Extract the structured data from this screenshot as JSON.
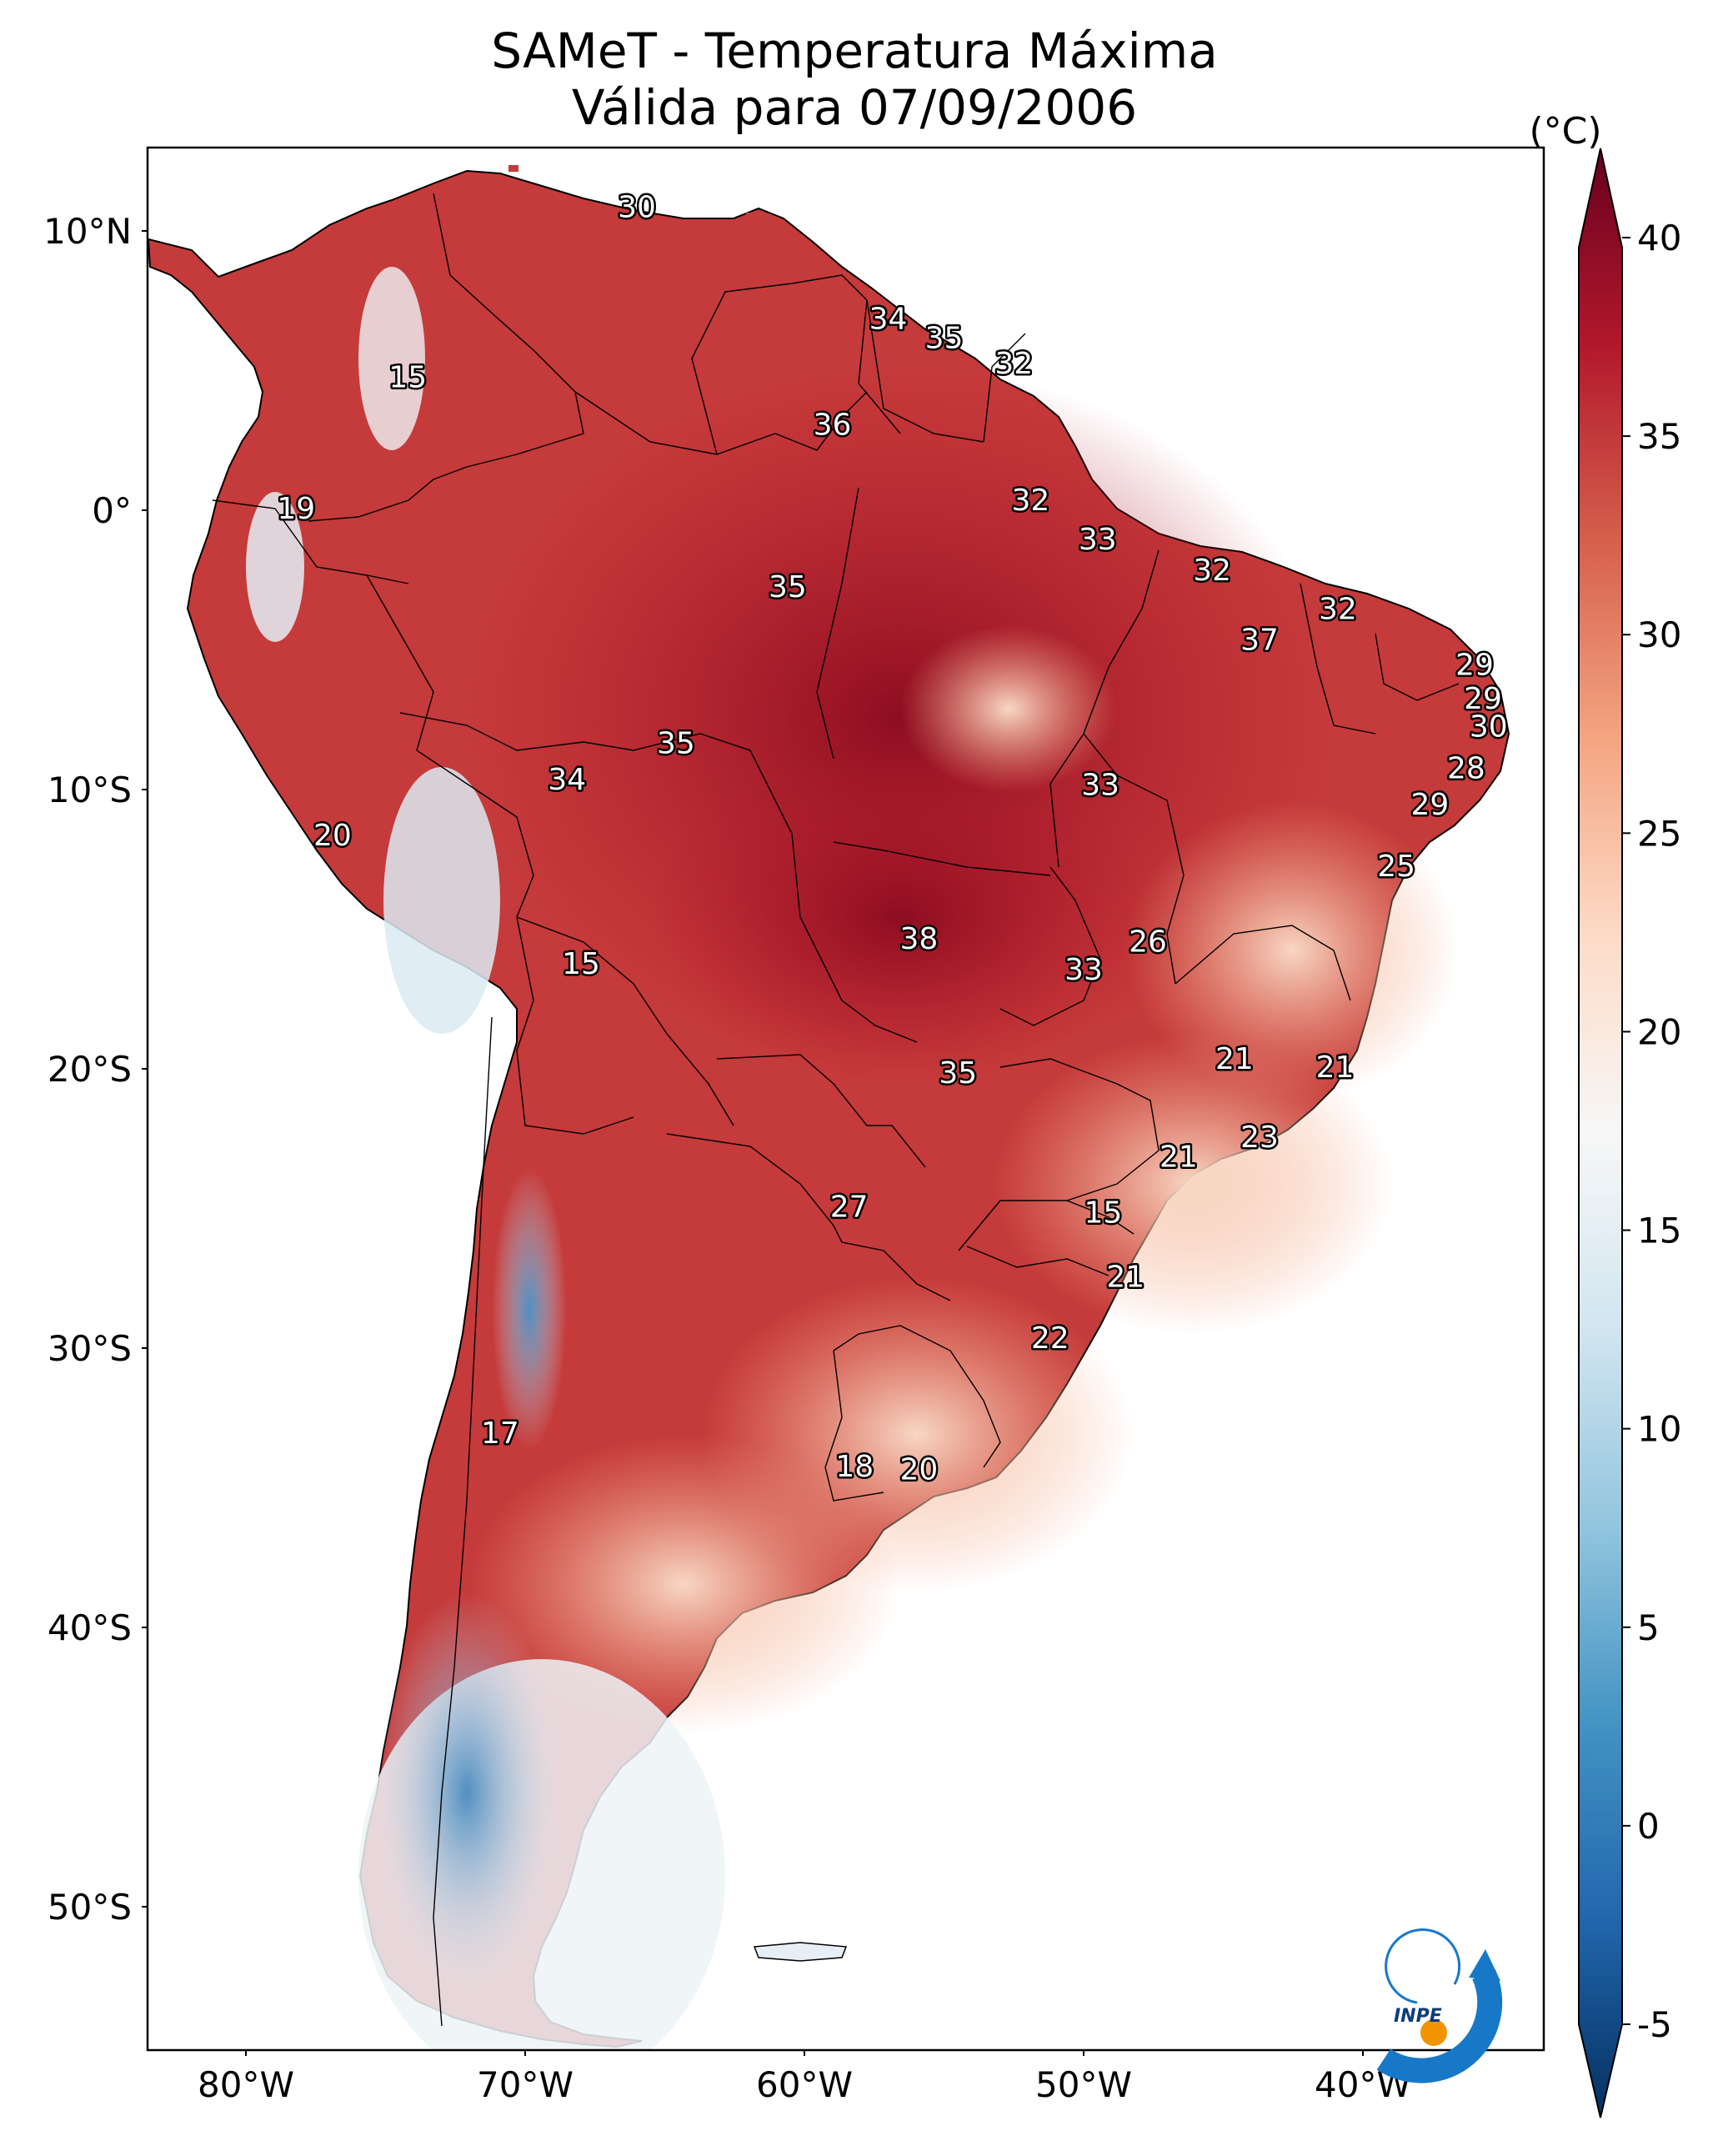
{
  "title": {
    "line1": "SAMeT - Temperatura Máxima",
    "line2": "Válida para 07/09/2006"
  },
  "map": {
    "lat_labels": [
      "10°N",
      "0°",
      "10°S",
      "20°S",
      "30°S",
      "40°S",
      "50°S"
    ],
    "lon_labels": [
      "80°W",
      "70°W",
      "60°W",
      "50°W",
      "40°W"
    ],
    "point_labels": [
      {
        "value": "30",
        "lon": -66.0,
        "lat": 10.5
      },
      {
        "value": "34",
        "lon": -57.0,
        "lat": 6.5
      },
      {
        "value": "35",
        "lon": -55.0,
        "lat": 5.8
      },
      {
        "value": "32",
        "lon": -52.5,
        "lat": 4.9
      },
      {
        "value": "15",
        "lon": -74.2,
        "lat": 4.4
      },
      {
        "value": "36",
        "lon": -59.0,
        "lat": 2.7
      },
      {
        "value": "32",
        "lon": -51.9,
        "lat": 0.0
      },
      {
        "value": "19",
        "lon": -78.2,
        "lat": -0.3
      },
      {
        "value": "33",
        "lon": -49.5,
        "lat": -1.4
      },
      {
        "value": "32",
        "lon": -45.4,
        "lat": -2.5
      },
      {
        "value": "35",
        "lon": -60.6,
        "lat": -3.1
      },
      {
        "value": "32",
        "lon": -40.9,
        "lat": -3.9
      },
      {
        "value": "37",
        "lon": -43.7,
        "lat": -5.0
      },
      {
        "value": "29",
        "lon": -36.0,
        "lat": -5.9
      },
      {
        "value": "29",
        "lon": -35.7,
        "lat": -7.1
      },
      {
        "value": "30",
        "lon": -35.5,
        "lat": -8.1
      },
      {
        "value": "35",
        "lon": -64.6,
        "lat": -8.7
      },
      {
        "value": "28",
        "lon": -36.3,
        "lat": -9.6
      },
      {
        "value": "34",
        "lon": -68.5,
        "lat": -10.0
      },
      {
        "value": "33",
        "lon": -49.4,
        "lat": -10.2
      },
      {
        "value": "29",
        "lon": -37.6,
        "lat": -10.9
      },
      {
        "value": "20",
        "lon": -76.9,
        "lat": -12.0
      },
      {
        "value": "25",
        "lon": -38.8,
        "lat": -13.1
      },
      {
        "value": "38",
        "lon": -55.9,
        "lat": -15.7
      },
      {
        "value": "26",
        "lon": -47.7,
        "lat": -15.8
      },
      {
        "value": "15",
        "lon": -68.0,
        "lat": -16.6
      },
      {
        "value": "33",
        "lon": -50.0,
        "lat": -16.8
      },
      {
        "value": "21",
        "lon": -44.6,
        "lat": -20.0
      },
      {
        "value": "21",
        "lon": -41.0,
        "lat": -20.3
      },
      {
        "value": "35",
        "lon": -54.5,
        "lat": -20.5
      },
      {
        "value": "23",
        "lon": -43.7,
        "lat": -22.8
      },
      {
        "value": "21",
        "lon": -46.6,
        "lat": -23.5
      },
      {
        "value": "27",
        "lon": -58.4,
        "lat": -25.3
      },
      {
        "value": "15",
        "lon": -49.3,
        "lat": -25.5
      },
      {
        "value": "21",
        "lon": -48.5,
        "lat": -27.8
      },
      {
        "value": "22",
        "lon": -51.2,
        "lat": -30.0
      },
      {
        "value": "17",
        "lon": -70.9,
        "lat": -33.4
      },
      {
        "value": "18",
        "lon": -58.2,
        "lat": -34.6
      },
      {
        "value": "20",
        "lon": -55.9,
        "lat": -34.7
      }
    ]
  },
  "colorbar": {
    "unit": "(°C)",
    "ticks": [
      "40",
      "35",
      "30",
      "25",
      "20",
      "15",
      "10",
      "5",
      "0",
      "-5"
    ],
    "colors": [
      "#67001f",
      "#b2182b",
      "#d6604d",
      "#f4a582",
      "#fddbc7",
      "#f7f7f7",
      "#d1e5f0",
      "#92c5de",
      "#4393c3",
      "#2166ac",
      "#053061"
    ]
  },
  "logo": {
    "text": "INPE"
  }
}
